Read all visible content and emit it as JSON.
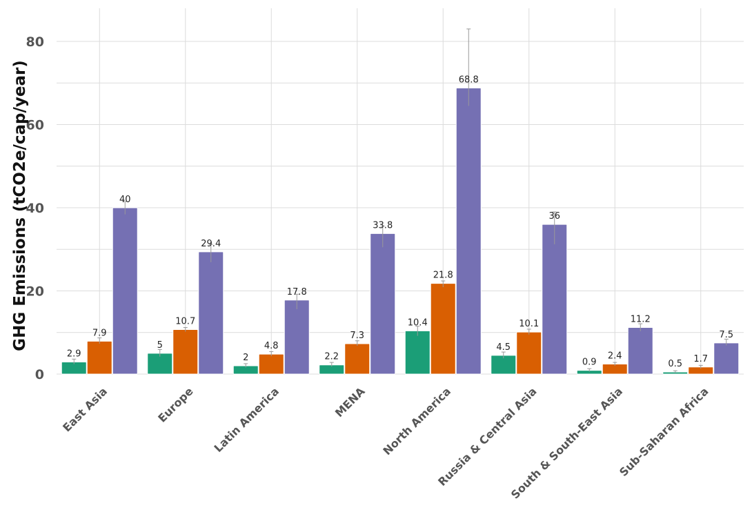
{
  "chart_data": {
    "type": "bar",
    "title": "",
    "xlabel": "",
    "ylabel": "GHG Emissions (tCO2e/cap/year)",
    "ylim": [
      0,
      87
    ],
    "yticks": [
      0,
      20,
      40,
      60,
      80
    ],
    "grid": true,
    "legend": "none",
    "categories": [
      "East Asia",
      "Europe",
      "Latin America",
      "MENA",
      "North America",
      "Russia & Central Asia",
      "South & South-East Asia",
      "Sub-Saharan Africa"
    ],
    "series": [
      {
        "color": "#1b9e77",
        "values": [
          2.9,
          5,
          2,
          2.2,
          10.4,
          4.5,
          0.9,
          0.5
        ],
        "labels": [
          "2.9",
          "5",
          "2",
          "2.2",
          "10.4",
          "4.5",
          "0.9",
          "0.5"
        ],
        "error_low": [
          2.4,
          4.2,
          1.6,
          1.8,
          9.2,
          3.8,
          0.6,
          0.3
        ],
        "error_high": [
          3.6,
          5.9,
          2.5,
          2.8,
          11.5,
          5.3,
          1.3,
          0.8
        ]
      },
      {
        "color": "#d95f02",
        "values": [
          7.9,
          10.7,
          4.8,
          7.3,
          21.8,
          10.1,
          2.4,
          1.7
        ],
        "labels": [
          "7.9",
          "10.7",
          "4.8",
          "7.3",
          "21.8",
          "10.1",
          "2.4",
          "1.7"
        ],
        "error_low": [
          7.3,
          10.2,
          4.3,
          6.8,
          20.9,
          9.5,
          2.0,
          1.3
        ],
        "error_high": [
          8.7,
          11.2,
          5.4,
          8.0,
          22.4,
          10.8,
          2.8,
          2.1
        ]
      },
      {
        "color": "#7570b3",
        "values": [
          40,
          29.4,
          17.8,
          33.8,
          68.8,
          36,
          11.2,
          7.5
        ],
        "labels": [
          "40",
          "29.4",
          "17.8",
          "33.8",
          "68.8",
          "36",
          "11.2",
          "7.5"
        ],
        "error_low": [
          38.4,
          26.9,
          15.6,
          30.5,
          64.5,
          31.2,
          10.3,
          6.9
        ],
        "error_high": [
          41.5,
          31.2,
          19.2,
          35.6,
          83,
          39,
          12.1,
          8.4
        ]
      }
    ]
  }
}
